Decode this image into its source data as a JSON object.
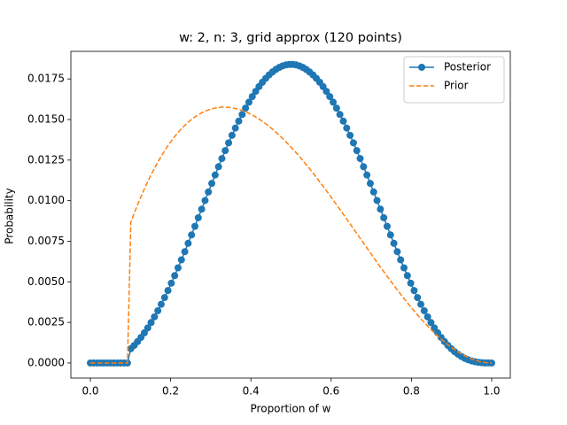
{
  "chart_data": {
    "type": "line",
    "title": "w: 2, n: 3, grid approx (120 points)",
    "xlabel": "Proportion of w",
    "ylabel": "Probability",
    "x": [
      0,
      0.0084,
      0.0168,
      0.0252,
      0.0336,
      0.042,
      0.0504,
      0.0588,
      0.0672,
      0.0756,
      0.084,
      0.0924,
      0.1008,
      0.1092,
      0.1176,
      0.1261,
      0.1345,
      0.1429,
      0.1513,
      0.1597,
      0.1681,
      0.1765,
      0.1849,
      0.1933,
      0.2017,
      0.2101,
      0.2185,
      0.2269,
      0.2353,
      0.2437,
      0.2521,
      0.2605,
      0.2689,
      0.2773,
      0.2857,
      0.2941,
      0.3025,
      0.3109,
      0.3193,
      0.3277,
      0.3361,
      0.3445,
      0.3529,
      0.3613,
      0.3697,
      0.3782,
      0.3866,
      0.395,
      0.4034,
      0.4118,
      0.4202,
      0.4286,
      0.437,
      0.4454,
      0.4538,
      0.4622,
      0.4706,
      0.479,
      0.4874,
      0.4958,
      0.5042,
      0.5126,
      0.521,
      0.5294,
      0.5378,
      0.5462,
      0.5546,
      0.563,
      0.5714,
      0.5798,
      0.5882,
      0.5966,
      0.605,
      0.6134,
      0.6218,
      0.6303,
      0.6387,
      0.6471,
      0.6555,
      0.6639,
      0.6723,
      0.6807,
      0.6891,
      0.6975,
      0.7059,
      0.7143,
      0.7227,
      0.7311,
      0.7395,
      0.7479,
      0.7563,
      0.7647,
      0.7731,
      0.7815,
      0.7899,
      0.7983,
      0.8067,
      0.8151,
      0.8235,
      0.8319,
      0.8403,
      0.8487,
      0.8571,
      0.8655,
      0.8739,
      0.8824,
      0.8908,
      0.8992,
      0.9076,
      0.916,
      0.9244,
      0.9328,
      0.9412,
      0.9496,
      0.958,
      0.9664,
      0.9748,
      0.9832,
      0.9916,
      1.0
    ],
    "series": [
      {
        "name": "Posterior",
        "color": "#1f77b4",
        "linestyle": "solid",
        "marker": "o",
        "values": [
          0,
          0,
          0,
          0,
          0,
          0,
          0,
          0,
          0,
          0,
          0,
          0,
          0.000878,
          0.001085,
          0.001317,
          0.001574,
          0.001856,
          0.002162,
          0.002492,
          0.002844,
          0.003219,
          0.003615,
          0.00403,
          0.004464,
          0.004915,
          0.005382,
          0.005862,
          0.006356,
          0.00686,
          0.007373,
          0.007893,
          0.008419,
          0.008949,
          0.009479,
          0.010009,
          0.010538,
          0.011062,
          0.011581,
          0.012093,
          0.012594,
          0.013086,
          0.013563,
          0.014026,
          0.014473,
          0.014901,
          0.015312,
          0.015702,
          0.016069,
          0.016414,
          0.016734,
          0.017029,
          0.017297,
          0.017538,
          0.01775,
          0.017932,
          0.018086,
          0.018208,
          0.018303,
          0.018365,
          0.018396,
          0.018396,
          0.018365,
          0.018303,
          0.018208,
          0.018086,
          0.017932,
          0.01775,
          0.017538,
          0.017297,
          0.017029,
          0.016734,
          0.016414,
          0.016069,
          0.015702,
          0.015312,
          0.014901,
          0.014473,
          0.014026,
          0.013563,
          0.013086,
          0.012594,
          0.012093,
          0.011581,
          0.011062,
          0.010538,
          0.010009,
          0.009479,
          0.008949,
          0.008419,
          0.007893,
          0.007373,
          0.00686,
          0.006356,
          0.005862,
          0.005382,
          0.004915,
          0.004464,
          0.00403,
          0.003615,
          0.003219,
          0.002844,
          0.002492,
          0.002162,
          0.001856,
          0.001574,
          0.001317,
          0.001085,
          0.000878,
          0.000695,
          0.000537,
          0.000402,
          0.00029,
          0.0002,
          0.000129,
          7.7e-05,
          4e-05,
          1.7e-05,
          5e-06,
          1e-06,
          0
        ]
      },
      {
        "name": "Prior",
        "color": "#ff7f0e",
        "linestyle": "dashed",
        "values": [
          0,
          0,
          0,
          0,
          0,
          0,
          0,
          0,
          0,
          0,
          0,
          0,
          0.008675,
          0.009223,
          0.009746,
          0.010244,
          0.010718,
          0.011167,
          0.011594,
          0.011997,
          0.012377,
          0.012734,
          0.01307,
          0.013384,
          0.013676,
          0.013948,
          0.014199,
          0.014429,
          0.01464,
          0.014832,
          0.015004,
          0.015158,
          0.015293,
          0.015411,
          0.01551,
          0.015593,
          0.015659,
          0.015709,
          0.015742,
          0.01576,
          0.015762,
          0.01575,
          0.015723,
          0.015682,
          0.015627,
          0.015559,
          0.015478,
          0.015384,
          0.015278,
          0.01516,
          0.01503,
          0.01489,
          0.014738,
          0.014577,
          0.014405,
          0.014224,
          0.014034,
          0.013834,
          0.013627,
          0.013411,
          0.013187,
          0.012957,
          0.012719,
          0.012474,
          0.012224,
          0.011968,
          0.011706,
          0.011439,
          0.011167,
          0.010892,
          0.010612,
          0.010329,
          0.010042,
          0.009753,
          0.009462,
          0.009168,
          0.008873,
          0.008576,
          0.008279,
          0.007981,
          0.007683,
          0.007385,
          0.007088,
          0.006792,
          0.006497,
          0.006204,
          0.005913,
          0.005625,
          0.00534,
          0.005058,
          0.004779,
          0.004505,
          0.004235,
          0.003969,
          0.003709,
          0.003455,
          0.003206,
          0.002964,
          0.002729,
          0.0025,
          0.002279,
          0.002066,
          0.001861,
          0.001665,
          0.001477,
          0.001299,
          0.001131,
          0.000973,
          0.000825,
          0.000688,
          0.000563,
          0.000449,
          0.000347,
          0.000257,
          0.00018,
          0.000116,
          6.6e-05,
          3e-05,
          7e-06,
          0
        ]
      }
    ],
    "xlim": [
      -0.0486,
      1.0464
    ],
    "ylim": [
      -0.00093,
      0.0192
    ],
    "xticks": [
      {
        "value": 0,
        "label": "0.0"
      },
      0.2,
      0.4,
      0.6,
      0.8,
      {
        "value": 1,
        "label": "1.0"
      }
    ],
    "yticks": [
      {
        "value": 0,
        "label": "0.0000"
      },
      0.0025,
      {
        "value": 0.005,
        "label": "0.0050"
      },
      0.0075,
      {
        "value": 0.01,
        "label": "0.0100"
      },
      0.0125,
      {
        "value": 0.015,
        "label": "0.0150"
      },
      0.0175
    ],
    "legend": "upper right"
  }
}
